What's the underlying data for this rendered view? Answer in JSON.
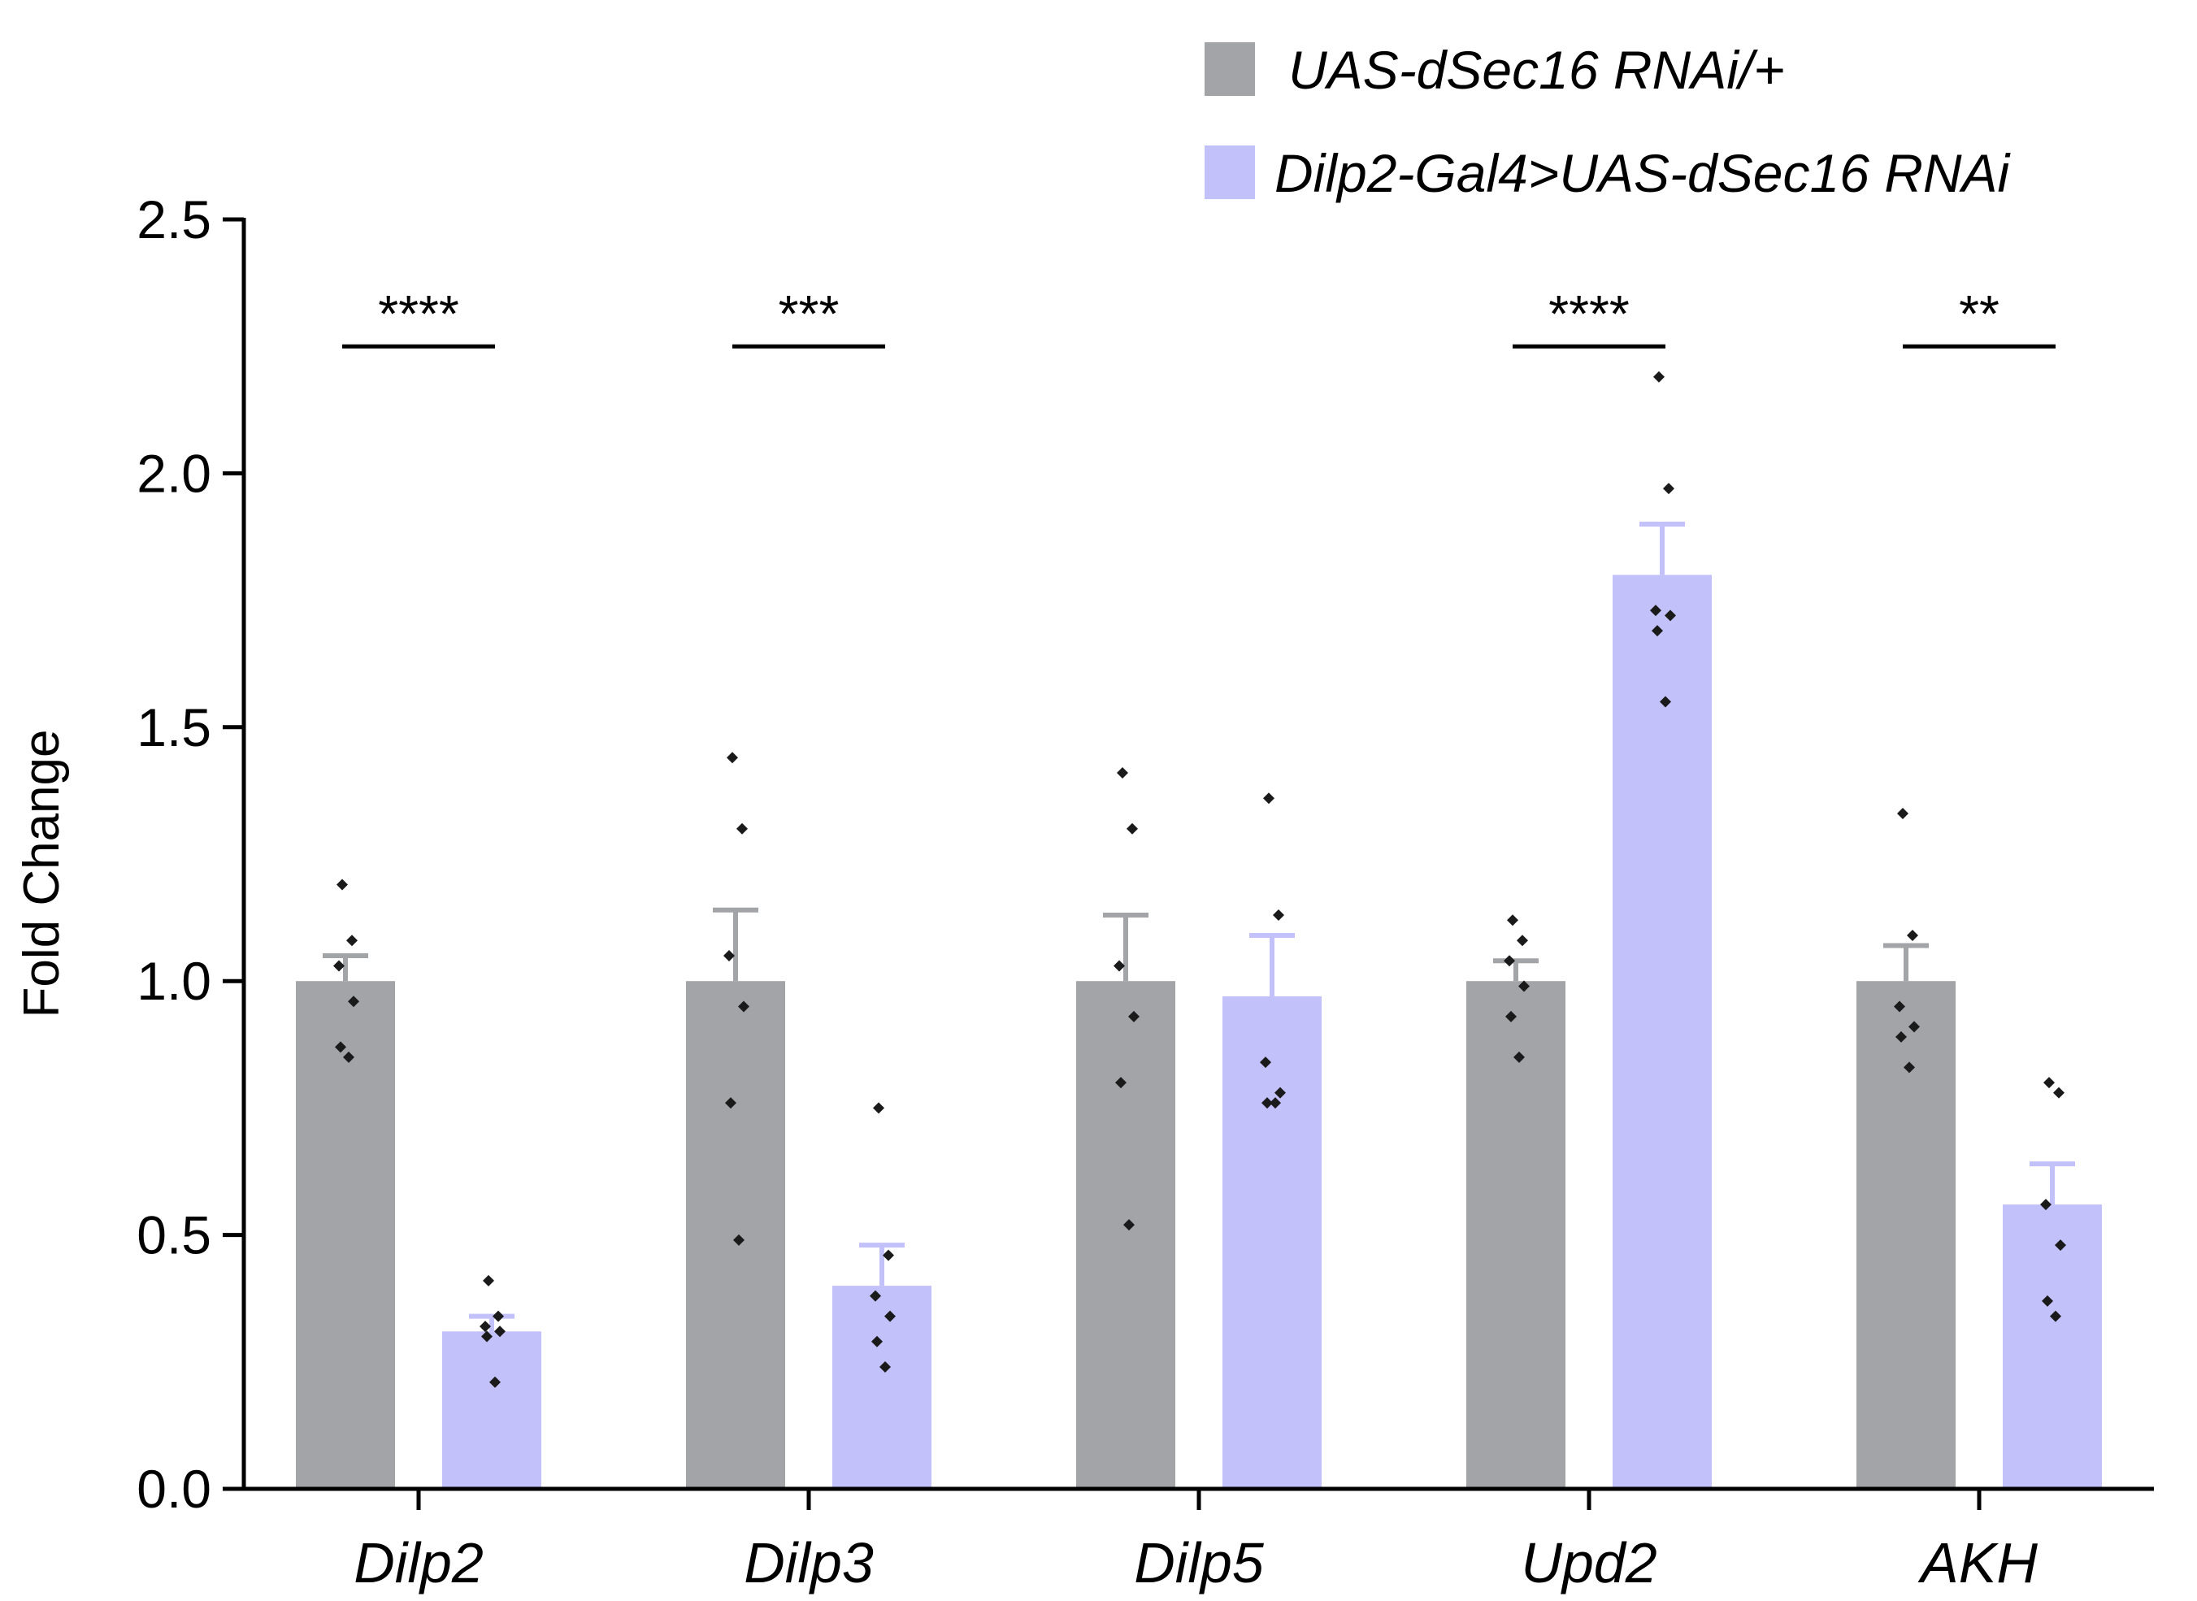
{
  "chart_data": {
    "type": "bar",
    "title": "",
    "xlabel": "",
    "ylabel": "Fold Change",
    "ylim": [
      0,
      2.5
    ],
    "yticks": [
      "0.0",
      "0.5",
      "1.0",
      "1.5",
      "2.0",
      "2.5"
    ],
    "categories": [
      "Dilp2",
      "Dilp3",
      "Dilp5",
      "Upd2",
      "AKH"
    ],
    "legend_position": "top-right",
    "series": [
      {
        "name": "UAS-dSec16 RNAi/+",
        "color": "#a3a4a8",
        "error_color": "#a3a4a8",
        "values": [
          1.0,
          1.0,
          1.0,
          1.0,
          1.0
        ],
        "sem": [
          0.05,
          0.14,
          0.13,
          0.04,
          0.07
        ],
        "points": [
          [
            1.19,
            1.08,
            1.03,
            0.96,
            0.87,
            0.85
          ],
          [
            1.44,
            1.3,
            1.05,
            0.95,
            0.76,
            0.49
          ],
          [
            1.41,
            1.3,
            1.03,
            0.93,
            0.8,
            0.52
          ],
          [
            1.12,
            1.08,
            1.04,
            0.99,
            0.93,
            0.85
          ],
          [
            1.33,
            1.09,
            0.95,
            0.91,
            0.89,
            0.83
          ]
        ]
      },
      {
        "name": "Dilp2-Gal4>UAS-dSec16 RNAi",
        "color": "#c3c1fa",
        "error_color": "#c3c1fa",
        "values": [
          0.31,
          0.4,
          0.97,
          1.8,
          0.56
        ],
        "sem": [
          0.03,
          0.08,
          0.12,
          0.1,
          0.08
        ],
        "points": [
          [
            0.41,
            0.34,
            0.32,
            0.31,
            0.3,
            0.21
          ],
          [
            0.75,
            0.46,
            0.38,
            0.34,
            0.29,
            0.24
          ],
          [
            1.36,
            1.13,
            0.84,
            0.78,
            0.76,
            0.76
          ],
          [
            2.19,
            1.97,
            1.73,
            1.72,
            1.69,
            1.55
          ],
          [
            0.8,
            0.78,
            0.56,
            0.48,
            0.37,
            0.34
          ]
        ]
      }
    ],
    "significance": [
      {
        "category": "Dilp2",
        "label": "****",
        "y": 2.25
      },
      {
        "category": "Dilp3",
        "label": "***",
        "y": 2.25
      },
      {
        "category": "Upd2",
        "label": "****",
        "y": 2.25
      },
      {
        "category": "AKH",
        "label": "**",
        "y": 2.25
      }
    ]
  }
}
